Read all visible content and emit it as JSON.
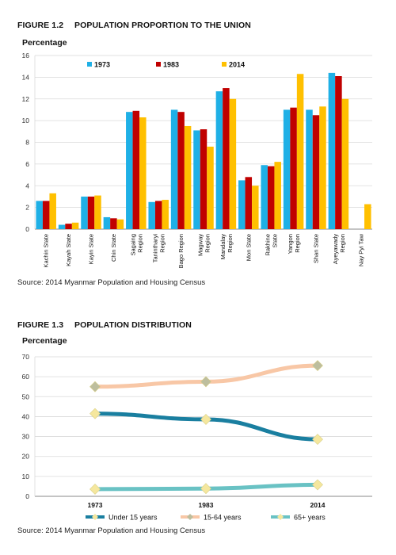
{
  "figure1": {
    "number": "FIGURE 1.2",
    "title": "POPULATION PROPORTION TO THE UNION",
    "source": "Source: 2014 Myanmar Population and Housing Census"
  },
  "figure2": {
    "number": "FIGURE 1.3",
    "title": "POPULATION DISTRIBUTION",
    "source": "Source: 2014 Myanmar Population and Housing Census"
  },
  "colors": {
    "s1973": "#1FB0E6",
    "s1983": "#C00000",
    "s2014": "#FFC000",
    "under15": "#1A7FA0",
    "age15to64": "#F8C7A6",
    "age65plus": "#69C2C4",
    "marker": "#F5E79E",
    "marker_mid": "#BDBE9E"
  },
  "chart_data": [
    {
      "type": "bar",
      "ylabel": "Percentage",
      "ylim": [
        0,
        16
      ],
      "yticks": [
        0,
        2,
        4,
        6,
        8,
        10,
        12,
        14,
        16
      ],
      "legend_position": "top-center",
      "categories": [
        "Kachin State",
        "Kayah State",
        "Kayin State",
        "Chin State",
        "Sagaing Region",
        "Tanintharyi Region",
        "Bago Region",
        "Magway Region",
        "Mandalay Region",
        "Mon State",
        "Rakhine State",
        "Yangon Region",
        "Shan State",
        "Ayeyawady Region",
        "Nay Pyi Taw"
      ],
      "category_lines": [
        [
          "Kachin State"
        ],
        [
          "Kayah State"
        ],
        [
          "Kayin State"
        ],
        [
          "Chin State"
        ],
        [
          "Sagaing",
          "Region"
        ],
        [
          "Tanintharyi",
          "Region"
        ],
        [
          "Bago Region"
        ],
        [
          "Magway",
          "Region"
        ],
        [
          "Mandalay",
          "Region"
        ],
        [
          "Mon State"
        ],
        [
          "Rakhine",
          "State"
        ],
        [
          "Yangon",
          "Region"
        ],
        [
          "Shan State"
        ],
        [
          "Ayeyawady",
          "Region"
        ],
        [
          "Nay Pyi Taw"
        ]
      ],
      "series": [
        {
          "name": "1973",
          "values": [
            2.6,
            0.4,
            3.0,
            1.1,
            10.8,
            2.5,
            11.0,
            9.1,
            12.7,
            4.5,
            5.9,
            11.0,
            11.0,
            14.4,
            0
          ]
        },
        {
          "name": "1983",
          "values": [
            2.6,
            0.5,
            3.0,
            1.0,
            10.9,
            2.6,
            10.8,
            9.2,
            13.0,
            4.8,
            5.8,
            11.2,
            10.5,
            14.1,
            0
          ]
        },
        {
          "name": "2014",
          "values": [
            3.3,
            0.6,
            3.1,
            0.9,
            10.3,
            2.7,
            9.5,
            7.6,
            12.0,
            4.0,
            6.2,
            14.3,
            11.3,
            12.0,
            2.3
          ]
        }
      ]
    },
    {
      "type": "line",
      "ylabel": "Percentage",
      "ylim": [
        0,
        70
      ],
      "yticks": [
        0,
        10,
        20,
        30,
        40,
        50,
        60,
        70
      ],
      "legend_position": "bottom",
      "x": [
        "1973",
        "1983",
        "2014"
      ],
      "series": [
        {
          "name": "Under 15 years",
          "values": [
            41.5,
            38.6,
            28.6
          ]
        },
        {
          "name": "15-64 years",
          "values": [
            55.0,
            57.5,
            65.6
          ]
        },
        {
          "name": "65+ years",
          "values": [
            3.6,
            3.9,
            5.8
          ]
        }
      ]
    }
  ]
}
